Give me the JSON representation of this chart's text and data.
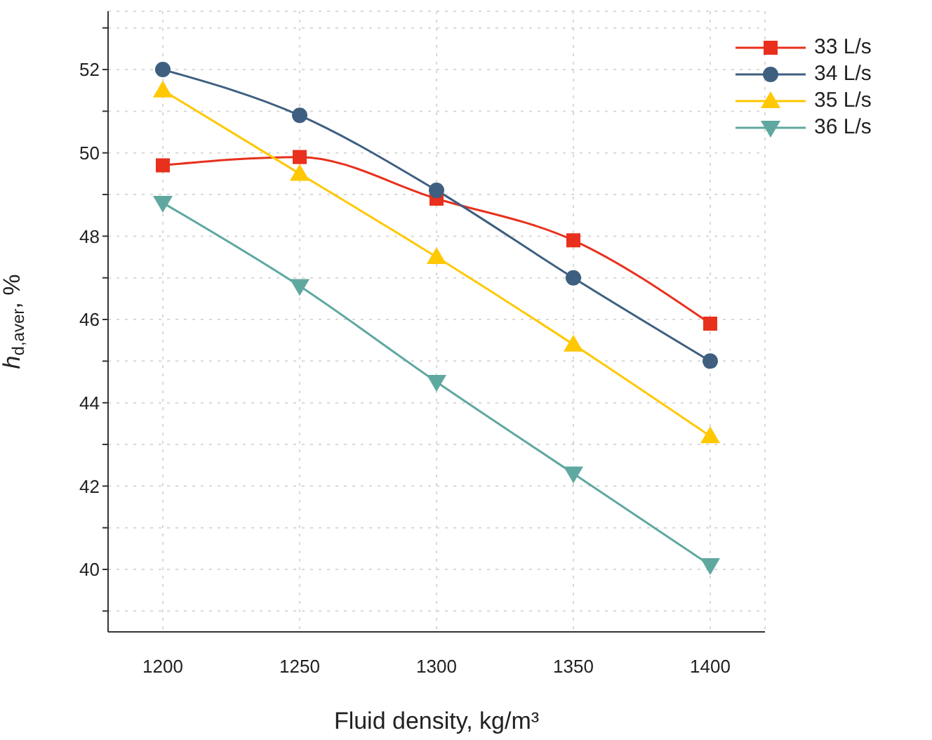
{
  "chart_data": {
    "type": "line",
    "xlabel": "Fluid density, kg/m³",
    "ylabel": "h$_{d,aver}$, %",
    "x": [
      1200,
      1250,
      1300,
      1350,
      1400
    ],
    "series": [
      {
        "name": "33 L/s",
        "color": "#e8301c",
        "marker": "square",
        "values": [
          49.7,
          49.9,
          48.9,
          47.9,
          45.9
        ]
      },
      {
        "name": "34 L/s",
        "color": "#3e5f80",
        "marker": "circle",
        "values": [
          52.0,
          50.9,
          49.1,
          47.0,
          45.0
        ]
      },
      {
        "name": "35 L/s",
        "color": "#ffc800",
        "marker": "triangle",
        "values": [
          51.5,
          49.5,
          47.5,
          45.4,
          43.2
        ]
      },
      {
        "name": "36 L/s",
        "color": "#5fa8a0",
        "marker": "triangle-down",
        "values": [
          48.8,
          46.8,
          44.5,
          42.3,
          40.1
        ]
      }
    ],
    "xlim": [
      1180,
      1420
    ],
    "xticks": [
      1200,
      1250,
      1300,
      1350,
      1400
    ],
    "ylim": [
      38.5,
      53.4
    ],
    "yticks": [
      {
        "value": 39,
        "label": null
      },
      40,
      {
        "value": 41,
        "label": null
      },
      42,
      {
        "value": 43,
        "label": null
      },
      44,
      {
        "value": 45,
        "label": null
      },
      46,
      {
        "value": 47,
        "label": null
      },
      48,
      {
        "value": 49,
        "label": null
      },
      50,
      {
        "value": 51,
        "label": null
      },
      52,
      {
        "value": 53,
        "label": null
      }
    ],
    "grid": true,
    "legend": "top right",
    "line_style": "solid"
  }
}
